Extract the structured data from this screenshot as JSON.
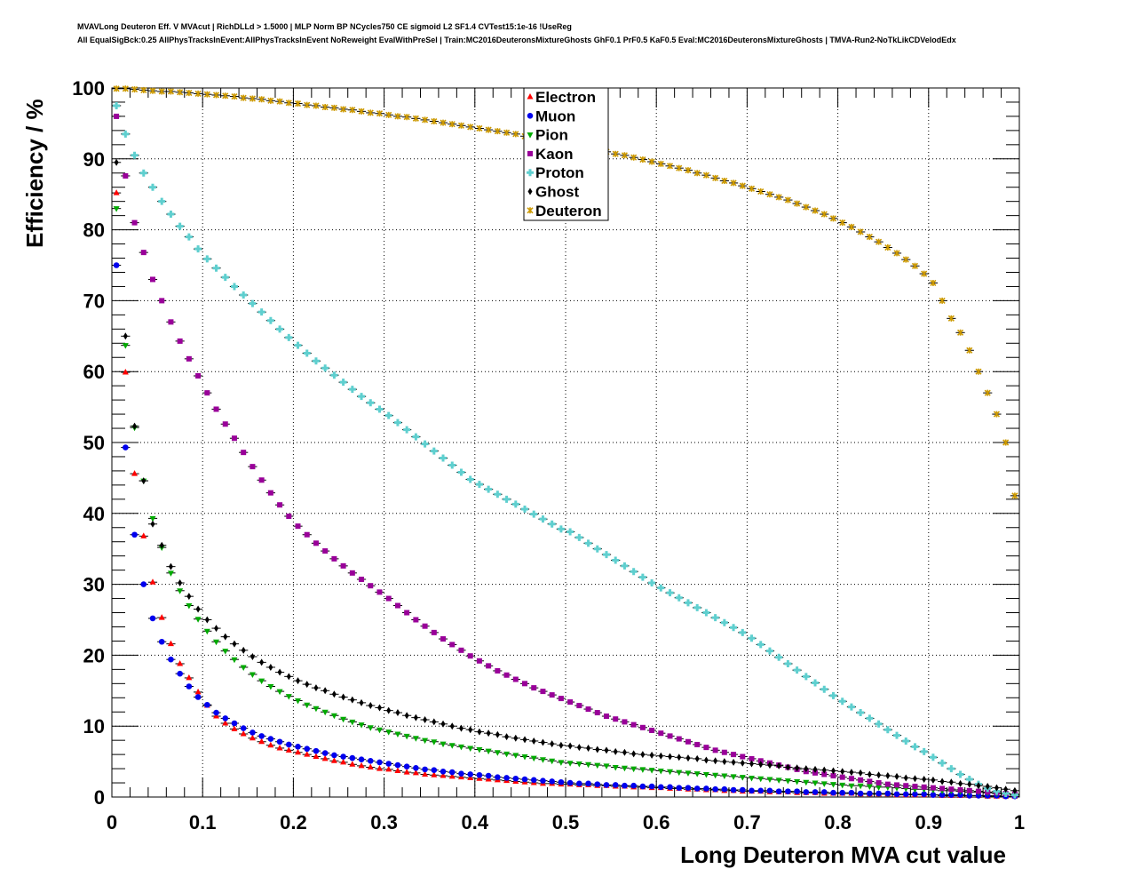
{
  "title_lines": [
    "MVAVLong Deuteron Eff. V MVAcut | RichDLLd > 1.5000 | MLP Norm BP NCycles750 CE sigmoid L2 SF1.4 CVTest15:1e-16 !UseReg",
    "All EqualSigBck:0.25 AllPhysTracksInEvent:AllPhysTracksInEvent NoReweight EvalWithPreSel | Train:MC2016DeuteronsMixtureGhosts GhF0.1 PrF0.5 KaF0.5 Eval:MC2016DeuteronsMixtureGhosts | TMVA-Run2-NoTkLikCDVelodEdx"
  ],
  "chart_data": {
    "type": "scatter",
    "title": "MVAVLong Deuteron Eff. V MVAcut",
    "xlabel": "Long Deuteron MVA cut value",
    "ylabel": "Efficiency / %",
    "xlim": [
      0,
      1
    ],
    "ylim": [
      0,
      100
    ],
    "x_first_bin_center": 0.005,
    "bin_width": 0.01,
    "grid": true,
    "legend_position": "top-center",
    "xticks": [
      "0",
      "0.1",
      "0.2",
      "0.3",
      "0.4",
      "0.5",
      "0.6",
      "0.7",
      "0.8",
      "0.9",
      "1"
    ],
    "yticks": [
      "0",
      "10",
      "20",
      "30",
      "40",
      "50",
      "60",
      "70",
      "80",
      "90",
      "100"
    ],
    "series": [
      {
        "name": "Electron",
        "marker": "triangle-up",
        "color": "#ff0000",
        "values": [
          85.2,
          59.9,
          45.6,
          36.8,
          30.3,
          25.3,
          21.6,
          18.8,
          16.8,
          14.8,
          12.9,
          11.4,
          10.4,
          9.6,
          8.9,
          8.3,
          7.8,
          7.3,
          6.9,
          6.6,
          6.3,
          6.0,
          5.7,
          5.4,
          5.1,
          4.9,
          4.6,
          4.4,
          4.2,
          4.0,
          3.9,
          3.7,
          3.5,
          3.4,
          3.2,
          3.1,
          3.0,
          2.9,
          2.8,
          2.7,
          2.6,
          2.5,
          2.4,
          2.3,
          2.2,
          2.1,
          2.0,
          1.9,
          1.9,
          1.8,
          1.8,
          1.7,
          1.7,
          1.6,
          1.6,
          1.5,
          1.5,
          1.4,
          1.4,
          1.3,
          1.3,
          1.2,
          1.2,
          1.1,
          1.1,
          1.0,
          1.0,
          0.9,
          0.9,
          0.8,
          0.8,
          0.8,
          0.7,
          0.7,
          0.7,
          0.6,
          0.6,
          0.6,
          0.5,
          0.5,
          0.5,
          0.5,
          0.4,
          0.4,
          0.4,
          0.4,
          0.3,
          0.3,
          0.3,
          0.3,
          0.3,
          0.2,
          0.2,
          0.2,
          0.2,
          0.2,
          0.1,
          0.1,
          0.1,
          0.1
        ]
      },
      {
        "name": "Muon",
        "marker": "circle",
        "color": "#0000ee",
        "values": [
          75.0,
          49.3,
          37.0,
          30.0,
          25.2,
          21.9,
          19.4,
          17.4,
          15.6,
          14.1,
          13.0,
          11.9,
          11.1,
          10.4,
          9.7,
          9.1,
          8.6,
          8.2,
          7.8,
          7.4,
          7.1,
          6.8,
          6.5,
          6.2,
          5.9,
          5.7,
          5.5,
          5.3,
          5.1,
          4.9,
          4.7,
          4.5,
          4.3,
          4.1,
          3.9,
          3.8,
          3.6,
          3.5,
          3.3,
          3.2,
          3.1,
          3.0,
          2.8,
          2.7,
          2.6,
          2.5,
          2.4,
          2.3,
          2.2,
          2.1,
          2.0,
          1.9,
          1.9,
          1.8,
          1.7,
          1.7,
          1.6,
          1.6,
          1.5,
          1.5,
          1.4,
          1.4,
          1.3,
          1.3,
          1.2,
          1.2,
          1.1,
          1.1,
          1.0,
          1.0,
          0.9,
          0.9,
          0.9,
          0.8,
          0.8,
          0.8,
          0.7,
          0.7,
          0.7,
          0.6,
          0.6,
          0.6,
          0.5,
          0.5,
          0.5,
          0.5,
          0.4,
          0.4,
          0.4,
          0.4,
          0.3,
          0.3,
          0.3,
          0.3,
          0.2,
          0.2,
          0.2,
          0.2,
          0.1,
          0.1
        ]
      },
      {
        "name": "Pion",
        "marker": "triangle-down",
        "color": "#00aa00",
        "values": [
          83.0,
          63.7,
          52.1,
          44.6,
          39.3,
          35.2,
          31.6,
          29.1,
          27.0,
          25.1,
          23.4,
          21.9,
          20.6,
          19.4,
          18.3,
          17.3,
          16.4,
          15.6,
          14.9,
          14.2,
          13.6,
          13.0,
          12.5,
          12.0,
          11.5,
          11.0,
          10.6,
          10.2,
          9.8,
          9.5,
          9.2,
          8.9,
          8.6,
          8.3,
          8.0,
          7.8,
          7.5,
          7.3,
          7.1,
          6.9,
          6.7,
          6.5,
          6.3,
          6.1,
          5.9,
          5.7,
          5.5,
          5.3,
          5.1,
          4.9,
          4.8,
          4.7,
          4.6,
          4.5,
          4.4,
          4.2,
          4.1,
          4.0,
          3.9,
          3.8,
          3.7,
          3.6,
          3.5,
          3.4,
          3.3,
          3.2,
          3.1,
          3.0,
          2.9,
          2.8,
          2.7,
          2.6,
          2.5,
          2.4,
          2.3,
          2.2,
          2.1,
          2.0,
          1.9,
          1.8,
          1.7,
          1.6,
          1.6,
          1.5,
          1.4,
          1.4,
          1.3,
          1.2,
          1.1,
          1.1,
          1.0,
          0.9,
          0.9,
          0.8,
          0.7,
          0.7,
          0.6,
          0.5,
          0.4,
          0.3
        ]
      },
      {
        "name": "Kaon",
        "marker": "square",
        "color": "#990099",
        "values": [
          96.0,
          87.6,
          81.0,
          76.8,
          73.0,
          70.0,
          67.0,
          64.3,
          61.8,
          59.4,
          57.0,
          54.7,
          52.6,
          50.6,
          48.6,
          46.6,
          44.7,
          42.9,
          41.2,
          39.6,
          38.2,
          37.0,
          35.8,
          34.7,
          33.6,
          32.6,
          31.6,
          30.7,
          29.8,
          28.9,
          28.0,
          27.0,
          26.0,
          25.0,
          24.1,
          23.2,
          22.3,
          21.5,
          20.7,
          19.9,
          19.2,
          18.5,
          17.8,
          17.2,
          16.6,
          16.0,
          15.4,
          14.9,
          14.4,
          13.9,
          13.4,
          12.9,
          12.4,
          11.9,
          11.4,
          11.0,
          10.6,
          10.2,
          9.8,
          9.4,
          9.0,
          8.6,
          8.2,
          7.8,
          7.4,
          7.0,
          6.6,
          6.3,
          6.0,
          5.7,
          5.4,
          5.1,
          4.8,
          4.5,
          4.2,
          3.9,
          3.6,
          3.4,
          3.2,
          3.0,
          2.8,
          2.6,
          2.4,
          2.2,
          2.0,
          1.8,
          1.7,
          1.6,
          1.5,
          1.4,
          1.3,
          1.2,
          1.1,
          1.0,
          0.9,
          0.8,
          0.7,
          0.6,
          0.5,
          0.4
        ]
      },
      {
        "name": "Proton",
        "marker": "cross",
        "color": "#5fcfcf",
        "values": [
          97.5,
          93.5,
          90.5,
          88.0,
          86.0,
          84.0,
          82.2,
          80.5,
          79.0,
          77.3,
          75.9,
          74.6,
          73.3,
          72.0,
          70.8,
          69.6,
          68.4,
          67.2,
          66.0,
          64.8,
          63.7,
          62.6,
          61.5,
          60.5,
          59.5,
          58.5,
          57.5,
          56.5,
          55.6,
          54.7,
          53.8,
          52.8,
          51.8,
          50.8,
          49.8,
          48.8,
          47.8,
          46.8,
          45.8,
          44.8,
          44.1,
          43.4,
          42.7,
          42.0,
          41.3,
          40.6,
          39.9,
          39.2,
          38.5,
          37.8,
          37.4,
          36.6,
          35.8,
          35.0,
          34.2,
          33.4,
          32.6,
          31.8,
          31.0,
          30.2,
          29.5,
          28.8,
          28.1,
          27.4,
          26.7,
          26.0,
          25.3,
          24.6,
          23.9,
          23.2,
          22.4,
          21.5,
          20.6,
          19.7,
          18.8,
          17.9,
          17.0,
          16.1,
          15.2,
          14.3,
          13.5,
          12.7,
          11.9,
          11.1,
          10.3,
          9.5,
          8.7,
          7.9,
          7.1,
          6.4,
          5.6,
          4.8,
          4.0,
          3.2,
          2.5,
          1.8,
          1.2,
          0.8,
          0.5,
          0.3
        ]
      },
      {
        "name": "Ghost",
        "marker": "diamond",
        "color": "#000000",
        "values": [
          89.5,
          65.0,
          52.3,
          44.6,
          38.5,
          35.5,
          32.5,
          30.2,
          28.3,
          26.5,
          25.0,
          23.8,
          22.6,
          21.6,
          20.7,
          19.8,
          19.0,
          18.3,
          17.6,
          17.0,
          16.4,
          15.9,
          15.4,
          15.0,
          14.5,
          14.1,
          13.7,
          13.3,
          12.9,
          12.6,
          12.2,
          11.9,
          11.5,
          11.2,
          10.9,
          10.6,
          10.3,
          10.0,
          9.7,
          9.5,
          9.2,
          9.0,
          8.8,
          8.5,
          8.3,
          8.1,
          7.9,
          7.7,
          7.5,
          7.3,
          7.2,
          7.0,
          6.9,
          6.7,
          6.6,
          6.4,
          6.3,
          6.1,
          6.0,
          5.9,
          5.8,
          5.7,
          5.6,
          5.5,
          5.4,
          5.2,
          5.1,
          5.0,
          4.9,
          4.8,
          4.7,
          4.6,
          4.5,
          4.4,
          4.2,
          4.1,
          4.0,
          3.9,
          3.8,
          3.7,
          3.6,
          3.5,
          3.4,
          3.2,
          3.1,
          3.0,
          2.9,
          2.7,
          2.6,
          2.5,
          2.4,
          2.2,
          2.1,
          1.9,
          1.8,
          1.6,
          1.5,
          1.3,
          1.1,
          0.9
        ]
      },
      {
        "name": "Deuteron",
        "marker": "star",
        "color": "#cc9900",
        "values": [
          99.9,
          99.9,
          99.8,
          99.7,
          99.6,
          99.5,
          99.5,
          99.4,
          99.3,
          99.2,
          99.1,
          99.0,
          98.9,
          98.8,
          98.6,
          98.5,
          98.4,
          98.2,
          98.1,
          97.9,
          97.8,
          97.6,
          97.5,
          97.3,
          97.2,
          97.0,
          96.9,
          96.7,
          96.5,
          96.4,
          96.2,
          96.0,
          95.9,
          95.7,
          95.5,
          95.3,
          95.1,
          94.9,
          94.7,
          94.5,
          94.3,
          94.1,
          93.9,
          93.7,
          93.5,
          93.2,
          93.0,
          92.8,
          92.5,
          92.3,
          92.0,
          91.8,
          91.5,
          91.3,
          91.0,
          90.7,
          90.5,
          90.2,
          89.9,
          89.6,
          89.3,
          89.0,
          88.7,
          88.4,
          88.0,
          87.7,
          87.3,
          86.9,
          86.6,
          86.2,
          85.8,
          85.4,
          85.0,
          84.6,
          84.2,
          83.7,
          83.2,
          82.7,
          82.2,
          81.6,
          81.0,
          80.4,
          79.7,
          79.0,
          78.3,
          77.5,
          76.7,
          75.8,
          74.9,
          73.8,
          72.5,
          70.0,
          67.5,
          65.5,
          63.0,
          60.0,
          57.0,
          54.0,
          50.0,
          42.5
        ]
      }
    ]
  }
}
